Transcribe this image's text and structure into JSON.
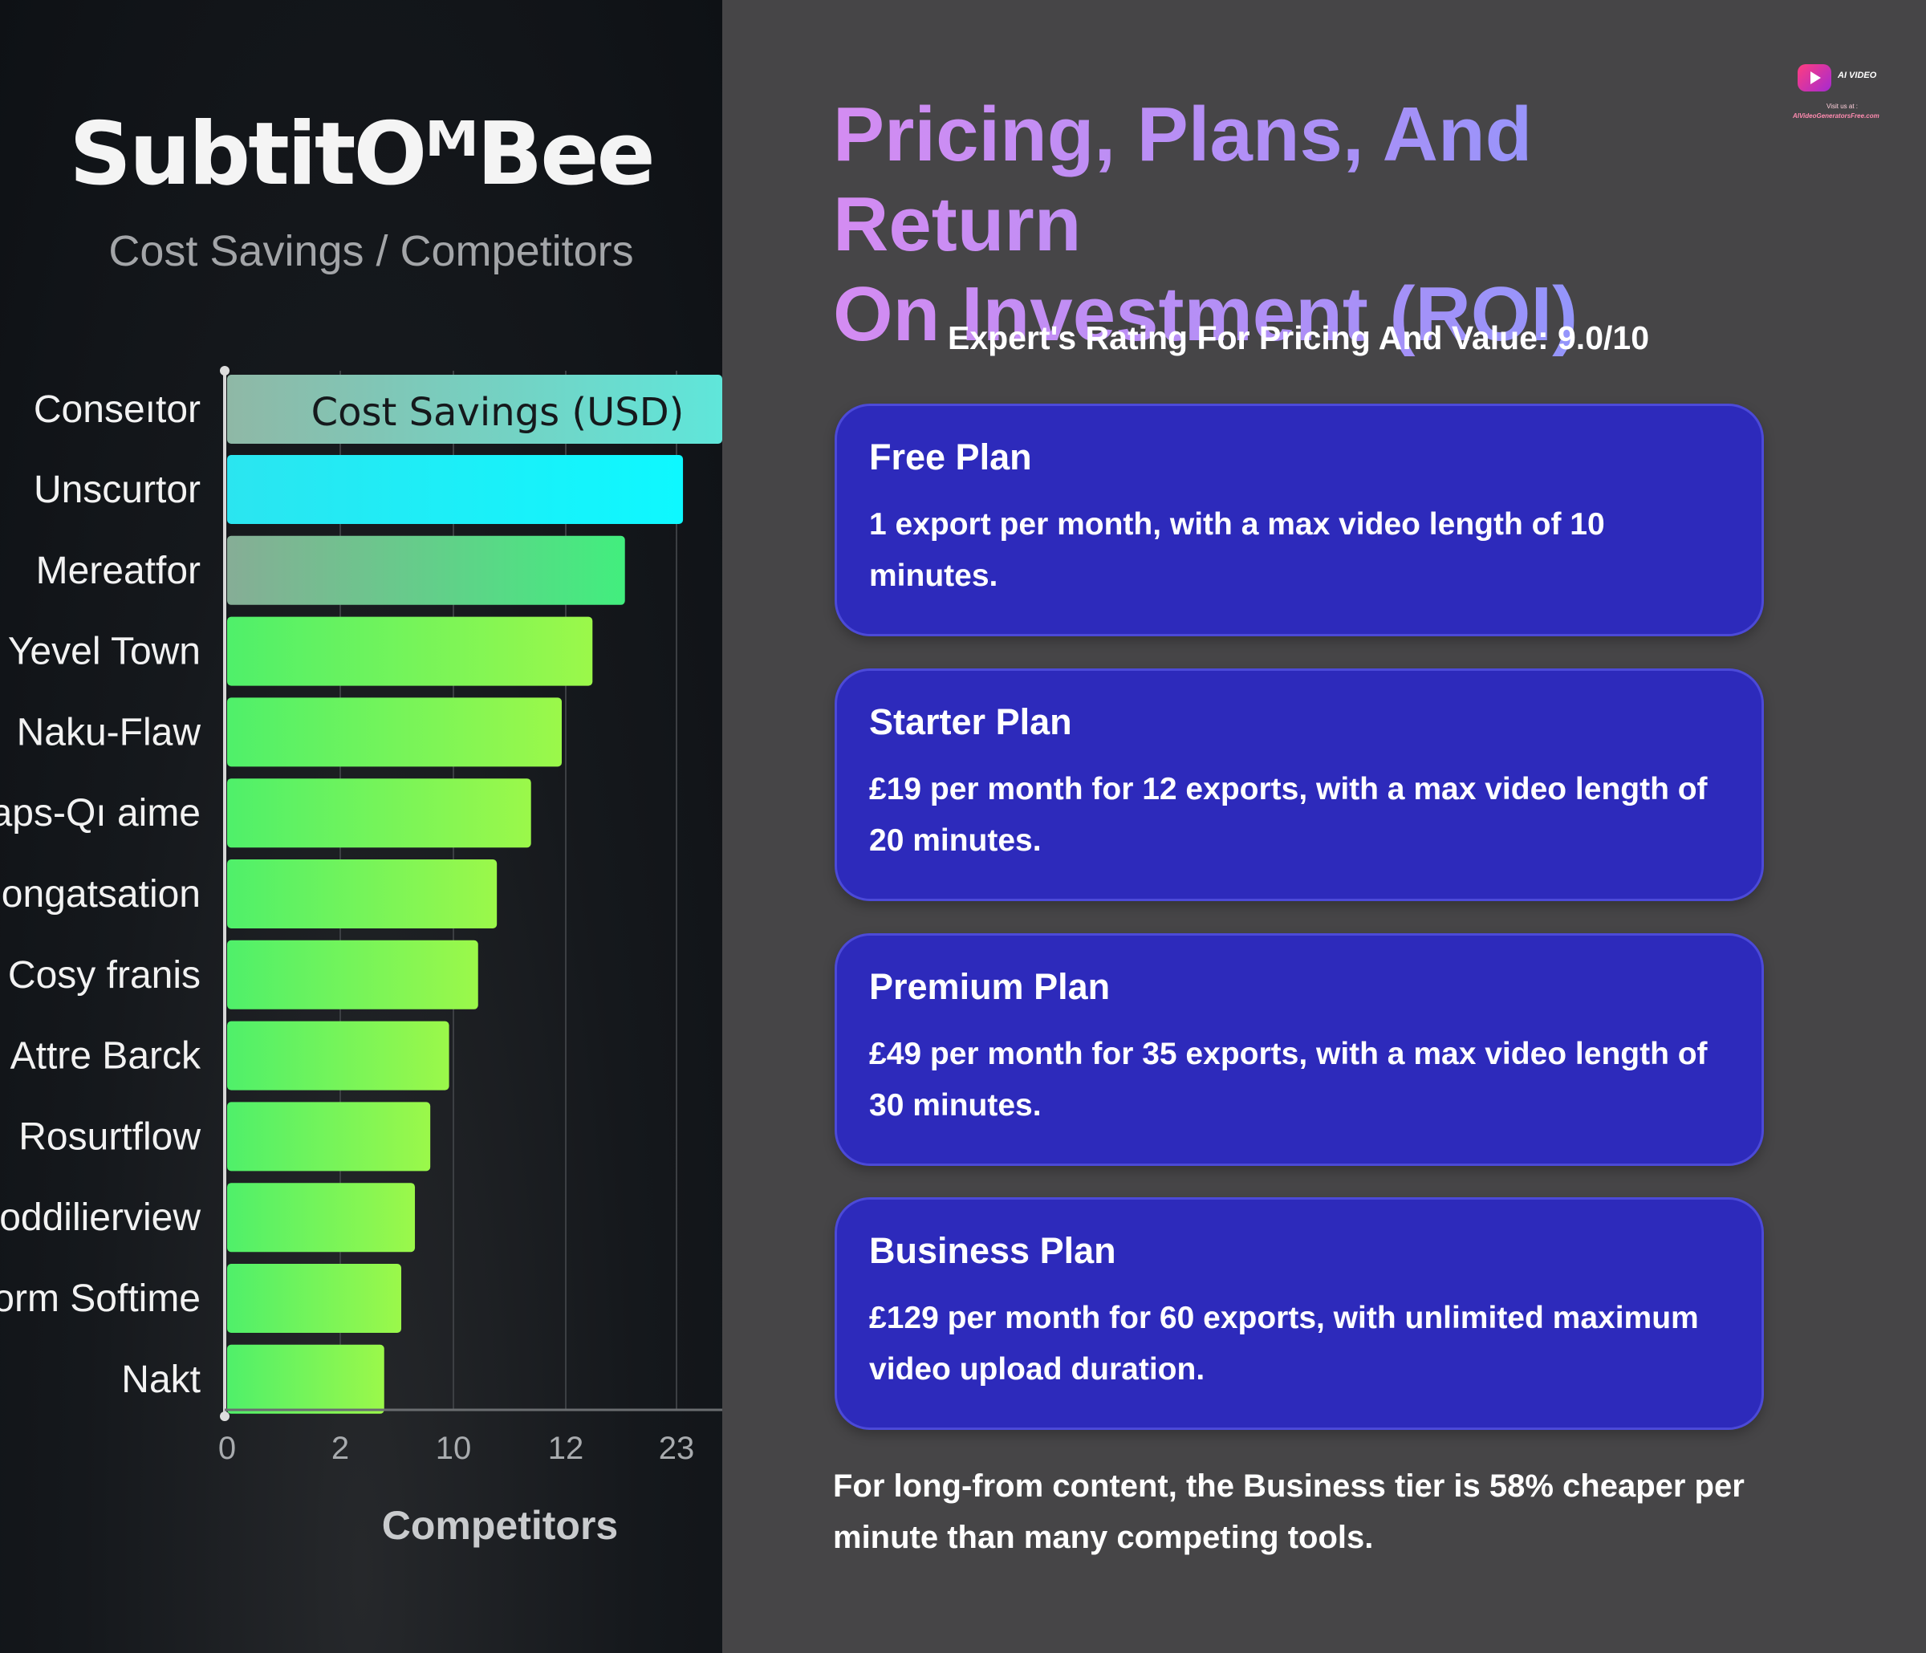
{
  "left": {
    "brand": "SubtitOᴹBee",
    "subtitle": "Cost Savings / Competitors"
  },
  "chart_data": {
    "type": "bar",
    "orientation": "horizontal",
    "title": "Cost Savings (USD)",
    "xlabel": "Competitors",
    "ylabel": "",
    "x_tick_labels": [
      "0",
      "2",
      "10",
      "12",
      "23"
    ],
    "categories": [
      "Conseıtor",
      "Unscurtor",
      "Mereatfor",
      "Yevel Town",
      "Naku-Flaw",
      "aps-Qı aime",
      "ongatsation",
      "Cosy franis",
      "Attre Barck",
      "Rosurtflow",
      "oddilierview",
      "orm Softime",
      "Nakt"
    ],
    "values": [
      29.0,
      26.7,
      23.3,
      21.4,
      19.6,
      17.8,
      15.8,
      14.7,
      13.0,
      11.9,
      11.0,
      10.2,
      9.2
    ],
    "xlim": [
      0,
      29
    ],
    "grid": true,
    "legend": "none",
    "colors": {
      "highlight": "#14f6f8",
      "bar_gradient": [
        "#4ff06a",
        "#9bf84a"
      ],
      "title_bar": "#6fd6c6"
    }
  },
  "right": {
    "logo": {
      "line1": "AI VIDEO",
      "line2": "Visit us at :",
      "line3": "AIVideoGeneratorsFree.com"
    },
    "title_line1": "Pricing, Plans, And Return",
    "title_line2": "On Investment (ROI)",
    "rating": "Expert's Rating For Pricing And Value: 9.0/10",
    "plans": [
      {
        "name": "Free Plan",
        "desc": "1 export per month, with a max video length of 10 minutes."
      },
      {
        "name": "Starter Plan",
        "desc": "£19 per month for 12 exports, with a max video length of 20 minutes."
      },
      {
        "name": "Premium Plan",
        "desc": "£49 per month for 35 exports, with a max video length of 30 minutes."
      },
      {
        "name": "Business Plan",
        "desc": "£129 per month for 60 exports, with unlimited maximum video upload duration."
      }
    ],
    "footnote": "For long-from content, the Business tier is 58% cheaper per minute than many competing tools."
  }
}
